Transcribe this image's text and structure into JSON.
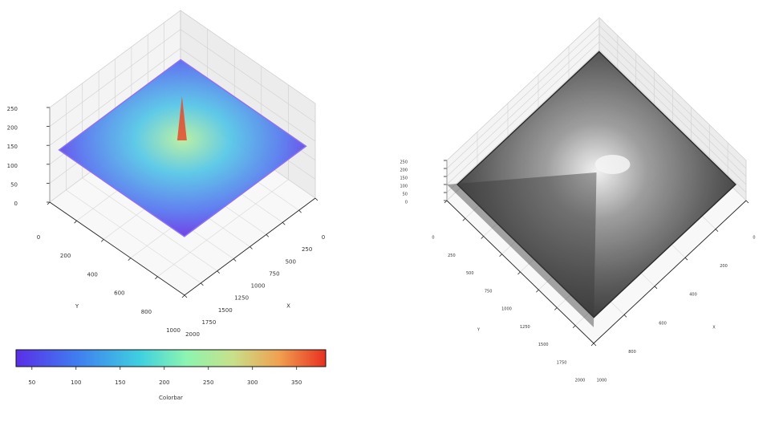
{
  "chart_data": [
    {
      "type": "surface3d",
      "x_label": "X",
      "y_label": "Y",
      "xlim": [
        0,
        2000
      ],
      "xticks": [
        0,
        250,
        500,
        750,
        1000,
        1250,
        1500,
        1750,
        2000
      ],
      "ylim": [
        0,
        1000
      ],
      "yticks": [
        0,
        200,
        400,
        600,
        800,
        1000
      ],
      "zlim": [
        0,
        250
      ],
      "zticks": [
        0,
        50,
        100,
        150,
        200,
        250
      ],
      "colormap": "rainbow",
      "colorbar": {
        "label": "Colorbar",
        "lim": [
          32,
          383
        ],
        "ticks": [
          50,
          100,
          150,
          200,
          250,
          300,
          350
        ]
      }
    },
    {
      "type": "surface3d",
      "x_label": "X",
      "y_label": "Y",
      "xlim": [
        0,
        1000
      ],
      "xticks": [
        0,
        200,
        400,
        600,
        800,
        1000
      ],
      "ylim": [
        0,
        2000
      ],
      "yticks": [
        0,
        250,
        500,
        750,
        1000,
        1250,
        1500,
        1750,
        2000
      ],
      "zlim": [
        0,
        250
      ],
      "zticks": [
        0,
        50,
        100,
        150,
        200,
        250
      ],
      "colormap": "gray"
    }
  ]
}
